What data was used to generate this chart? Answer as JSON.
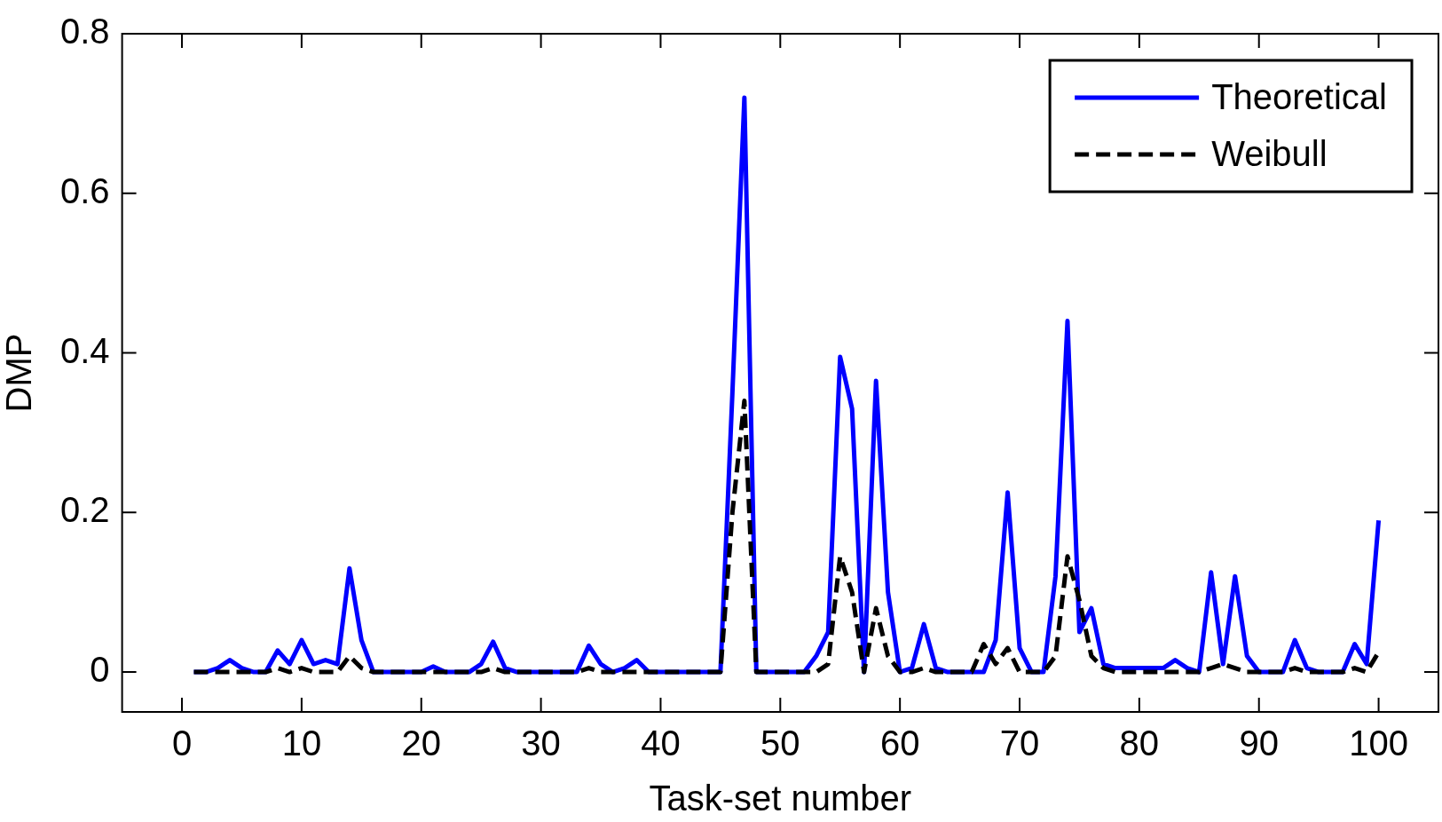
{
  "chart_data": {
    "type": "line",
    "xlabel": "Task-set number",
    "ylabel": "DMP",
    "x": [
      1,
      2,
      3,
      4,
      5,
      6,
      7,
      8,
      9,
      10,
      11,
      12,
      13,
      14,
      15,
      16,
      17,
      18,
      19,
      20,
      21,
      22,
      23,
      24,
      25,
      26,
      27,
      28,
      29,
      30,
      31,
      32,
      33,
      34,
      35,
      36,
      37,
      38,
      39,
      40,
      41,
      42,
      43,
      44,
      45,
      46,
      47,
      48,
      49,
      50,
      51,
      52,
      53,
      54,
      55,
      56,
      57,
      58,
      59,
      60,
      61,
      62,
      63,
      64,
      65,
      66,
      67,
      68,
      69,
      70,
      71,
      72,
      73,
      74,
      75,
      76,
      77,
      78,
      79,
      80,
      81,
      82,
      83,
      84,
      85,
      86,
      87,
      88,
      89,
      90,
      91,
      92,
      93,
      94,
      95,
      96,
      97,
      98,
      99,
      100
    ],
    "series": [
      {
        "name": "Theoretical",
        "color": "#0000ff",
        "line_style": "solid",
        "values": [
          0,
          0,
          0.005,
          0.015,
          0.005,
          0,
          0,
          0.027,
          0.01,
          0.04,
          0.01,
          0.015,
          0.01,
          0.13,
          0.04,
          0,
          0,
          0,
          0,
          0,
          0.007,
          0,
          0,
          0,
          0.01,
          0.038,
          0.005,
          0,
          0,
          0,
          0,
          0,
          0,
          0.033,
          0.01,
          0,
          0.005,
          0.015,
          0,
          0,
          0,
          0,
          0,
          0,
          0,
          0.35,
          0.72,
          0,
          0,
          0,
          0,
          0,
          0.02,
          0.05,
          0.395,
          0.33,
          0,
          0.365,
          0.1,
          0,
          0.005,
          0.06,
          0.005,
          0,
          0,
          0,
          0,
          0.04,
          0.225,
          0.03,
          0,
          0,
          0.12,
          0.44,
          0.05,
          0.08,
          0.01,
          0.005,
          0.005,
          0.005,
          0.005,
          0.005,
          0.015,
          0.005,
          0,
          0.125,
          0.01,
          0.12,
          0.02,
          0,
          0,
          0,
          0.04,
          0.005,
          0,
          0,
          0,
          0.035,
          0.01,
          0.19
        ]
      },
      {
        "name": "Weibull",
        "color": "#000000",
        "line_style": "dashed",
        "values": [
          0,
          0,
          0,
          0,
          0,
          0,
          0,
          0.005,
          0,
          0.005,
          0,
          0,
          0,
          0.02,
          0.005,
          0,
          0,
          0,
          0,
          0,
          0,
          0,
          0,
          0,
          0,
          0.005,
          0,
          0,
          0,
          0,
          0,
          0,
          0,
          0.005,
          0,
          0,
          0,
          0,
          0,
          0,
          0,
          0,
          0,
          0,
          0,
          0.2,
          0.34,
          0,
          0,
          0,
          0,
          0,
          0,
          0.01,
          0.145,
          0.1,
          0,
          0.08,
          0.02,
          0,
          0,
          0.005,
          0,
          0,
          0,
          0,
          0.035,
          0.01,
          0.03,
          0,
          0,
          0,
          0.02,
          0.145,
          0.09,
          0.02,
          0.005,
          0,
          0,
          0,
          0,
          0,
          0,
          0,
          0,
          0.005,
          0.01,
          0.005,
          0,
          0,
          0,
          0,
          0.005,
          0,
          0,
          0,
          0,
          0.005,
          0,
          0.025
        ]
      }
    ],
    "xlim": [
      -5,
      105
    ],
    "ylim": [
      -0.05,
      0.8
    ],
    "xticks": [
      0,
      10,
      20,
      30,
      40,
      50,
      60,
      70,
      80,
      90,
      100
    ],
    "yticks": [
      0,
      0.2,
      0.4,
      0.6,
      0.8
    ],
    "grid": false,
    "legend": "top right",
    "marker": "none"
  }
}
